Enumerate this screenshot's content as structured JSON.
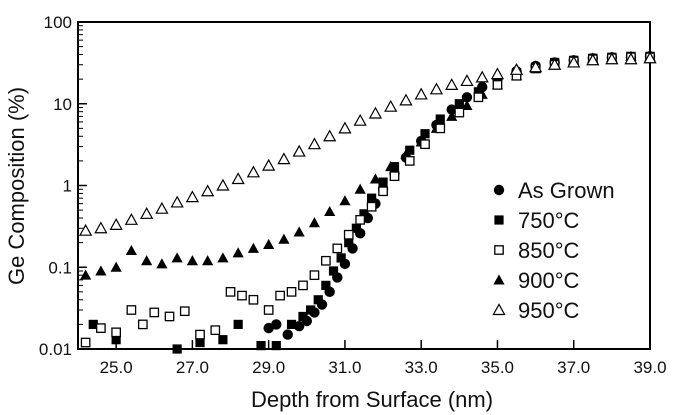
{
  "chart_data": {
    "type": "scatter",
    "xlabel": "Depth from Surface (nm)",
    "ylabel": "Ge Composition (%)",
    "xlim": [
      24.0,
      39.0
    ],
    "ylim": [
      0.01,
      100
    ],
    "yscale": "log",
    "x_ticks": [
      "25.0",
      "27.0",
      "29.0",
      "31.0",
      "33.0",
      "35.0",
      "37.0",
      "39.0"
    ],
    "y_ticks": [
      "0.01",
      "0.1",
      "1",
      "10",
      "100"
    ],
    "grid": false,
    "legend_position": "right",
    "series": [
      {
        "name": "As Grown",
        "marker": "filled-circle",
        "points": [
          [
            29.0,
            0.018
          ],
          [
            29.2,
            0.02
          ],
          [
            29.5,
            0.015
          ],
          [
            29.8,
            0.019
          ],
          [
            30.0,
            0.022
          ],
          [
            30.2,
            0.028
          ],
          [
            30.4,
            0.035
          ],
          [
            30.6,
            0.05
          ],
          [
            30.8,
            0.075
          ],
          [
            31.0,
            0.11
          ],
          [
            31.2,
            0.17
          ],
          [
            31.4,
            0.26
          ],
          [
            31.6,
            0.4
          ],
          [
            31.8,
            0.6
          ],
          [
            32.0,
            0.9
          ],
          [
            32.3,
            1.4
          ],
          [
            32.6,
            2.2
          ],
          [
            33.0,
            3.5
          ],
          [
            33.4,
            5.5
          ],
          [
            33.8,
            8.5
          ],
          [
            34.2,
            12
          ],
          [
            34.6,
            16
          ],
          [
            35.0,
            20
          ],
          [
            35.5,
            25
          ],
          [
            36.0,
            29
          ],
          [
            36.5,
            32
          ],
          [
            37.0,
            34
          ],
          [
            37.5,
            36
          ],
          [
            38.0,
            37
          ],
          [
            38.5,
            37
          ],
          [
            39.0,
            38
          ]
        ]
      },
      {
        "name": "750°C",
        "marker": "filled-square",
        "points": [
          [
            24.4,
            0.02
          ],
          [
            25.0,
            0.013
          ],
          [
            26.6,
            0.01
          ],
          [
            27.2,
            0.012
          ],
          [
            27.8,
            0.013
          ],
          [
            28.2,
            0.02
          ],
          [
            28.8,
            0.011
          ],
          [
            29.2,
            0.011
          ],
          [
            29.6,
            0.02
          ],
          [
            29.9,
            0.025
          ],
          [
            30.1,
            0.03
          ],
          [
            30.3,
            0.04
          ],
          [
            30.5,
            0.06
          ],
          [
            30.7,
            0.09
          ],
          [
            30.9,
            0.13
          ],
          [
            31.1,
            0.2
          ],
          [
            31.3,
            0.3
          ],
          [
            31.5,
            0.45
          ],
          [
            31.7,
            0.7
          ],
          [
            32.0,
            1.1
          ],
          [
            32.3,
            1.7
          ],
          [
            32.7,
            2.7
          ],
          [
            33.1,
            4.3
          ],
          [
            33.5,
            6.5
          ],
          [
            34.0,
            10
          ],
          [
            34.5,
            14
          ],
          [
            35.0,
            19
          ],
          [
            35.5,
            24
          ],
          [
            36.0,
            28
          ],
          [
            36.5,
            32
          ],
          [
            37.0,
            34
          ],
          [
            37.5,
            36
          ],
          [
            38.0,
            37
          ],
          [
            38.5,
            38
          ],
          [
            39.0,
            38
          ]
        ]
      },
      {
        "name": "850°C",
        "marker": "open-square",
        "points": [
          [
            24.2,
            0.012
          ],
          [
            24.6,
            0.018
          ],
          [
            25.0,
            0.016
          ],
          [
            25.4,
            0.03
          ],
          [
            25.7,
            0.02
          ],
          [
            26.0,
            0.028
          ],
          [
            26.4,
            0.025
          ],
          [
            26.8,
            0.029
          ],
          [
            27.2,
            0.015
          ],
          [
            27.6,
            0.017
          ],
          [
            28.0,
            0.05
          ],
          [
            28.3,
            0.045
          ],
          [
            28.6,
            0.04
          ],
          [
            29.0,
            0.03
          ],
          [
            29.3,
            0.045
          ],
          [
            29.6,
            0.05
          ],
          [
            29.9,
            0.06
          ],
          [
            30.2,
            0.08
          ],
          [
            30.5,
            0.12
          ],
          [
            30.8,
            0.17
          ],
          [
            31.1,
            0.25
          ],
          [
            31.4,
            0.38
          ],
          [
            31.7,
            0.55
          ],
          [
            32.0,
            0.85
          ],
          [
            32.3,
            1.3
          ],
          [
            32.7,
            2.0
          ],
          [
            33.1,
            3.2
          ],
          [
            33.5,
            5.0
          ],
          [
            34.0,
            7.8
          ],
          [
            34.5,
            12
          ],
          [
            35.0,
            17
          ],
          [
            35.5,
            22
          ],
          [
            36.0,
            27
          ],
          [
            36.5,
            30
          ],
          [
            37.0,
            33
          ],
          [
            37.5,
            35
          ],
          [
            38.0,
            36
          ],
          [
            38.5,
            37
          ],
          [
            39.0,
            37
          ]
        ]
      },
      {
        "name": "900°C",
        "marker": "filled-triangle",
        "points": [
          [
            24.2,
            0.08
          ],
          [
            24.6,
            0.09
          ],
          [
            25.0,
            0.1
          ],
          [
            25.4,
            0.16
          ],
          [
            25.8,
            0.12
          ],
          [
            26.2,
            0.11
          ],
          [
            26.6,
            0.13
          ],
          [
            27.0,
            0.12
          ],
          [
            27.4,
            0.12
          ],
          [
            27.8,
            0.13
          ],
          [
            28.2,
            0.15
          ],
          [
            28.6,
            0.17
          ],
          [
            29.0,
            0.19
          ],
          [
            29.4,
            0.22
          ],
          [
            29.8,
            0.27
          ],
          [
            30.2,
            0.35
          ],
          [
            30.6,
            0.48
          ],
          [
            31.0,
            0.65
          ],
          [
            31.4,
            0.9
          ],
          [
            31.8,
            1.2
          ],
          [
            32.2,
            1.7
          ],
          [
            32.6,
            2.4
          ],
          [
            33.0,
            3.4
          ],
          [
            33.4,
            5.0
          ],
          [
            33.8,
            7.0
          ],
          [
            34.2,
            9.5
          ],
          [
            34.6,
            13
          ],
          [
            35.0,
            17
          ],
          [
            35.5,
            22
          ],
          [
            36.0,
            27
          ],
          [
            36.5,
            31
          ],
          [
            37.0,
            34
          ],
          [
            37.5,
            36
          ],
          [
            38.0,
            37
          ],
          [
            38.5,
            38
          ],
          [
            39.0,
            38
          ]
        ]
      },
      {
        "name": "950°C",
        "marker": "open-triangle",
        "points": [
          [
            24.2,
            0.28
          ],
          [
            24.6,
            0.3
          ],
          [
            25.0,
            0.33
          ],
          [
            25.4,
            0.38
          ],
          [
            25.8,
            0.45
          ],
          [
            26.2,
            0.52
          ],
          [
            26.6,
            0.62
          ],
          [
            27.0,
            0.72
          ],
          [
            27.4,
            0.85
          ],
          [
            27.8,
            1.0
          ],
          [
            28.2,
            1.2
          ],
          [
            28.6,
            1.45
          ],
          [
            29.0,
            1.75
          ],
          [
            29.4,
            2.1
          ],
          [
            29.8,
            2.6
          ],
          [
            30.2,
            3.2
          ],
          [
            30.6,
            4.0
          ],
          [
            31.0,
            5.0
          ],
          [
            31.4,
            6.2
          ],
          [
            31.8,
            7.6
          ],
          [
            32.2,
            9.2
          ],
          [
            32.6,
            11
          ],
          [
            33.0,
            13
          ],
          [
            33.4,
            15
          ],
          [
            33.8,
            17
          ],
          [
            34.2,
            19
          ],
          [
            34.6,
            21
          ],
          [
            35.0,
            23
          ],
          [
            35.5,
            26
          ],
          [
            36.0,
            28
          ],
          [
            36.5,
            30
          ],
          [
            37.0,
            32
          ],
          [
            37.5,
            34
          ],
          [
            38.0,
            35
          ],
          [
            38.5,
            35
          ],
          [
            39.0,
            36
          ]
        ]
      }
    ]
  }
}
